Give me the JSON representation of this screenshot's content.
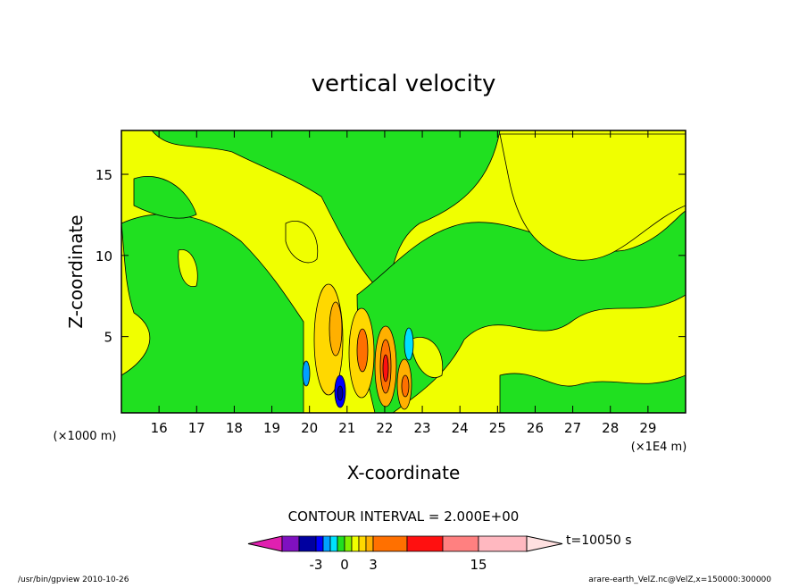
{
  "chart_data": {
    "type": "contour",
    "title": "vertical velocity",
    "x_label": "X-coordinate",
    "y_label": "Z-coordinate",
    "x_unit": "(×1E4 m)",
    "y_unit": "(×1000 m)",
    "xlim": [
      15,
      30
    ],
    "xticks": [
      16,
      17,
      18,
      19,
      20,
      21,
      22,
      23,
      24,
      25,
      26,
      27,
      28,
      29
    ],
    "ylim": [
      0.3,
      17.7
    ],
    "yticks": [
      5,
      10,
      15
    ],
    "contour_interval": "CONTOUR INTERVAL = 2.000E+00",
    "colorbar": {
      "colors": [
        "#e020b0",
        "#7f10c0",
        "#0000a0",
        "#0000ff",
        "#00a0ff",
        "#00e0ff",
        "#20e020",
        "#80f000",
        "#f0ff00",
        "#ffd800",
        "#ffb000",
        "#ff7000",
        "#ff1010",
        "#ff8080",
        "#ffb8c0",
        "#ffe0e0"
      ],
      "ticks": [
        -3,
        0,
        3,
        15
      ]
    },
    "time": "t=10050 s",
    "footer_left": "/usr/bin/gpview  2010-10-26",
    "footer_right": "arare-earth_VelZ.nc@VelZ,x=150000:300000"
  }
}
